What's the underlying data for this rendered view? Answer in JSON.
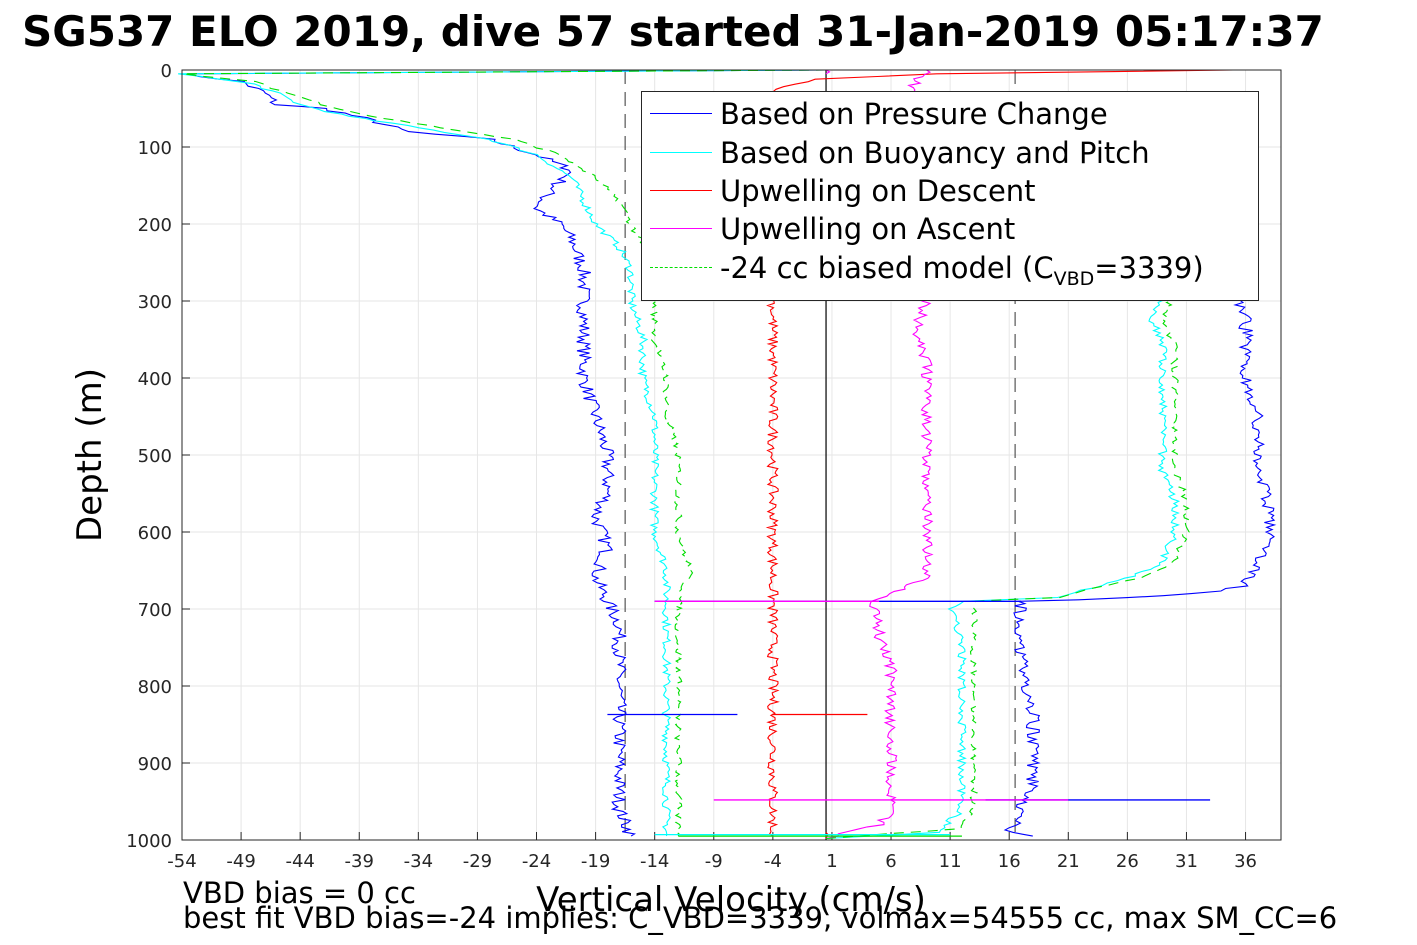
{
  "title": "SG537 ELO 2019, dive 57 started 31-Jan-2019 05:17:37",
  "ylabel": "Depth (m)",
  "xlabel": "Vertical Velocity (cm/s)",
  "notes": {
    "line1": "VBD bias = 0 cc",
    "line2": "best fit VBD bias=-24 implies: C_VBD=3339, volmax=54555 cc, max SM_CC=6"
  },
  "legend": {
    "items": [
      {
        "label": "Based on Pressure Change",
        "color": "#0000ff",
        "dash": false
      },
      {
        "label": "Based on Buoyancy and Pitch",
        "color": "#00ffff",
        "dash": false
      },
      {
        "label": "Upwelling on Descent",
        "color": "#ff0000",
        "dash": false
      },
      {
        "label": "Upwelling on Ascent",
        "color": "#ff00ff",
        "dash": false
      }
    ],
    "model_prefix": "-24 cc biased model (C",
    "model_sub": "VBD",
    "model_suffix": "=3339)",
    "model_color": "#00dd00"
  },
  "chart_data": {
    "type": "line",
    "title": "SG537 ELO 2019, dive 57 started 31-Jan-2019 05:17:37",
    "xlabel": "Vertical Velocity (cm/s)",
    "ylabel": "Depth (m)",
    "xlim": [
      -54,
      39
    ],
    "ylim": [
      0,
      1000
    ],
    "y_reversed": true,
    "grid": true,
    "legend_position": "top-right",
    "x_ticks": [
      -54,
      -49,
      -44,
      -39,
      -34,
      -29,
      -24,
      -19,
      -14,
      -9,
      -4,
      1,
      6,
      11,
      16,
      21,
      26,
      31,
      36
    ],
    "y_ticks": [
      0,
      100,
      200,
      300,
      400,
      500,
      600,
      700,
      800,
      900,
      1000
    ],
    "reference_lines": [
      {
        "x": 0.5,
        "style": "solid",
        "color": "#000000"
      },
      {
        "x": -16.5,
        "style": "dashed",
        "color": "#555555"
      },
      {
        "x": 16.5,
        "style": "dashed",
        "color": "#555555"
      }
    ],
    "series": [
      {
        "name": "Based on Pressure Change",
        "color": "#0000ff",
        "dash": false,
        "jitter": 0.6,
        "descent": [
          [
            0.5,
            0
          ],
          [
            -54,
            5
          ],
          [
            -49,
            15
          ],
          [
            -47,
            30
          ],
          [
            -46,
            45
          ],
          [
            -42,
            50
          ],
          [
            -38,
            65
          ],
          [
            -35,
            80
          ],
          [
            -28,
            90
          ],
          [
            -24,
            110
          ],
          [
            -21,
            130
          ],
          [
            -23,
            160
          ],
          [
            -24,
            180
          ],
          [
            -22,
            200
          ],
          [
            -21,
            220
          ],
          [
            -20,
            260
          ],
          [
            -20,
            300
          ],
          [
            -20,
            350
          ],
          [
            -20,
            400
          ],
          [
            -19,
            450
          ],
          [
            -18,
            500
          ],
          [
            -18,
            550
          ],
          [
            -19,
            580
          ],
          [
            -18,
            620
          ],
          [
            -19,
            660
          ],
          [
            -18,
            690
          ],
          [
            -17,
            720
          ],
          [
            -17,
            760
          ],
          [
            -17,
            800
          ],
          [
            -17,
            840
          ],
          [
            -17,
            880
          ],
          [
            -17,
            920
          ],
          [
            -17,
            960
          ],
          [
            -16,
            995
          ]
        ],
        "ascent": [
          [
            18,
            995
          ],
          [
            16,
            990
          ],
          [
            17,
            960
          ],
          [
            18,
            930
          ],
          [
            18,
            900
          ],
          [
            18,
            860
          ],
          [
            18,
            820
          ],
          [
            17,
            780
          ],
          [
            17,
            750
          ],
          [
            17,
            720
          ],
          [
            17,
            690
          ],
          [
            22,
            688
          ],
          [
            32,
            680
          ],
          [
            36,
            670
          ],
          [
            37,
            640
          ],
          [
            38,
            600
          ],
          [
            38,
            560
          ],
          [
            37,
            520
          ],
          [
            37,
            480
          ],
          [
            37,
            440
          ],
          [
            36,
            400
          ],
          [
            36,
            360
          ],
          [
            36,
            320
          ],
          [
            35,
            290
          ]
        ]
      },
      {
        "name": "Based on Buoyancy and Pitch",
        "color": "#00ffff",
        "dash": false,
        "jitter": 0.35,
        "descent": [
          [
            0.5,
            0
          ],
          [
            -54,
            5
          ],
          [
            -48,
            18
          ],
          [
            -46,
            30
          ],
          [
            -44,
            45
          ],
          [
            -40,
            60
          ],
          [
            -34,
            75
          ],
          [
            -28,
            90
          ],
          [
            -24,
            110
          ],
          [
            -21,
            140
          ],
          [
            -20,
            170
          ],
          [
            -19,
            200
          ],
          [
            -17,
            230
          ],
          [
            -16,
            260
          ],
          [
            -16,
            300
          ],
          [
            -15,
            350
          ],
          [
            -15,
            400
          ],
          [
            -14,
            450
          ],
          [
            -14,
            500
          ],
          [
            -14,
            550
          ],
          [
            -14,
            600
          ],
          [
            -13,
            650
          ],
          [
            -13,
            690
          ],
          [
            -13,
            750
          ],
          [
            -13,
            800
          ],
          [
            -13,
            850
          ],
          [
            -13,
            900
          ],
          [
            -13,
            950
          ],
          [
            -13,
            995
          ]
        ],
        "ascent": [
          [
            0.5,
            998
          ],
          [
            10,
            990
          ],
          [
            12,
            960
          ],
          [
            12,
            930
          ],
          [
            12,
            900
          ],
          [
            12,
            860
          ],
          [
            12,
            820
          ],
          [
            12,
            780
          ],
          [
            12,
            740
          ],
          [
            11,
            700
          ],
          [
            12,
            690
          ],
          [
            20,
            685
          ],
          [
            26,
            660
          ],
          [
            29,
            640
          ],
          [
            30,
            600
          ],
          [
            30,
            560
          ],
          [
            29,
            520
          ],
          [
            29,
            480
          ],
          [
            29,
            440
          ],
          [
            29,
            400
          ],
          [
            29,
            360
          ],
          [
            28,
            320
          ],
          [
            29,
            290
          ]
        ]
      },
      {
        "name": "Upwelling on Descent",
        "color": "#ff0000",
        "dash": false,
        "jitter": 0.45,
        "descent": [
          [
            35,
            0
          ],
          [
            10,
            5
          ],
          [
            0,
            12
          ],
          [
            -4,
            25
          ],
          [
            -4,
            60
          ],
          [
            -4,
            100
          ],
          [
            -4,
            150
          ],
          [
            -4,
            200
          ],
          [
            -4,
            250
          ],
          [
            -4,
            300
          ],
          [
            -4,
            350
          ],
          [
            -4,
            400
          ],
          [
            -4,
            450
          ],
          [
            -4,
            500
          ],
          [
            -4,
            550
          ],
          [
            -4,
            600
          ],
          [
            -4,
            650
          ],
          [
            -4,
            690
          ],
          [
            -4,
            750
          ],
          [
            -4,
            800
          ],
          [
            -4,
            850
          ],
          [
            -4,
            900
          ],
          [
            -4,
            950
          ],
          [
            -4,
            995
          ]
        ],
        "ascent": [
          [
            0.5,
            998
          ],
          [
            0.5,
            990
          ]
        ]
      },
      {
        "name": "Upwelling on Ascent",
        "color": "#ff00ff",
        "dash": false,
        "jitter": 0.5,
        "descent": [
          [
            0.5,
            0
          ],
          [
            0.5,
            5
          ]
        ],
        "ascent": [
          [
            0.5,
            998
          ],
          [
            5,
            980
          ],
          [
            6,
            960
          ],
          [
            6,
            930
          ],
          [
            6,
            900
          ],
          [
            6,
            860
          ],
          [
            6,
            820
          ],
          [
            6,
            780
          ],
          [
            5,
            740
          ],
          [
            5,
            700
          ],
          [
            4,
            690
          ],
          [
            6,
            680
          ],
          [
            9,
            660
          ],
          [
            9,
            620
          ],
          [
            9,
            580
          ],
          [
            9,
            540
          ],
          [
            9,
            500
          ],
          [
            9,
            460
          ],
          [
            9,
            420
          ],
          [
            9,
            380
          ],
          [
            8,
            340
          ],
          [
            9,
            300
          ],
          [
            9,
            250
          ],
          [
            9,
            200
          ],
          [
            9,
            150
          ],
          [
            9,
            100
          ],
          [
            9,
            50
          ],
          [
            8,
            20
          ],
          [
            9,
            0
          ]
        ]
      },
      {
        "name": "-24 cc biased model (C_VBD=3339)",
        "color": "#00dd00",
        "dash": true,
        "jitter": 0.3,
        "descent": [
          [
            0.5,
            0
          ],
          [
            -54,
            5
          ],
          [
            -48,
            15
          ],
          [
            -45,
            30
          ],
          [
            -42,
            45
          ],
          [
            -38,
            60
          ],
          [
            -32,
            75
          ],
          [
            -26,
            90
          ],
          [
            -22,
            110
          ],
          [
            -19,
            140
          ],
          [
            -17,
            170
          ],
          [
            -16,
            200
          ],
          [
            -15,
            230
          ],
          [
            -15,
            260
          ],
          [
            -14,
            300
          ],
          [
            -14,
            350
          ],
          [
            -13,
            400
          ],
          [
            -13,
            450
          ],
          [
            -12,
            500
          ],
          [
            -12,
            550
          ],
          [
            -12,
            600
          ],
          [
            -11,
            650
          ],
          [
            -12,
            690
          ],
          [
            -12,
            750
          ],
          [
            -12,
            800
          ],
          [
            -12,
            850
          ],
          [
            -12,
            900
          ],
          [
            -12,
            950
          ],
          [
            -12,
            995
          ]
        ],
        "ascent": [
          [
            0.5,
            998
          ],
          [
            12,
            985
          ],
          [
            13,
            960
          ],
          [
            13,
            930
          ],
          [
            13,
            900
          ],
          [
            13,
            860
          ],
          [
            13,
            820
          ],
          [
            13,
            780
          ],
          [
            13,
            740
          ],
          [
            13,
            700
          ],
          [
            13,
            690
          ],
          [
            20,
            685
          ],
          [
            27,
            660
          ],
          [
            30,
            640
          ],
          [
            31,
            600
          ],
          [
            31,
            560
          ],
          [
            30,
            520
          ],
          [
            30,
            480
          ],
          [
            30,
            440
          ],
          [
            30,
            400
          ],
          [
            30,
            360
          ],
          [
            29,
            320
          ],
          [
            30,
            290
          ]
        ]
      }
    ],
    "spikes": [
      {
        "color": "#0000ff",
        "depth": 837,
        "x": [
          -18,
          -7
        ]
      },
      {
        "color": "#0000ff",
        "depth": 690,
        "x": [
          -14,
          17
        ]
      },
      {
        "color": "#0000ff",
        "depth": 948,
        "x": [
          14,
          33
        ]
      },
      {
        "color": "#ff0000",
        "depth": 837,
        "x": [
          -4,
          4
        ]
      },
      {
        "color": "#ff00ff",
        "depth": 690,
        "x": [
          -14,
          5
        ]
      },
      {
        "color": "#ff00ff",
        "depth": 948,
        "x": [
          -9,
          21
        ]
      },
      {
        "color": "#00ffff",
        "depth": 993,
        "x": [
          -14,
          11
        ]
      },
      {
        "color": "#00dd00",
        "depth": 995,
        "x": [
          -12,
          12
        ]
      }
    ]
  }
}
